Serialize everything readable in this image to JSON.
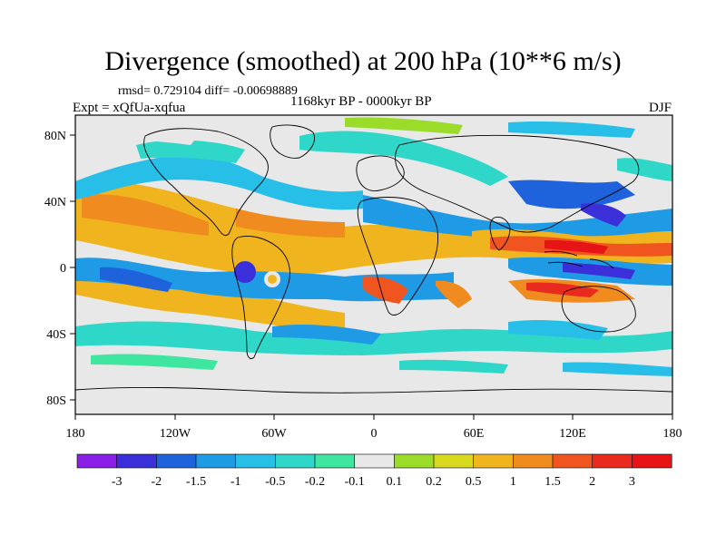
{
  "title": "Divergence (smoothed) at 200 hPa (10**6 m/s)",
  "stats": "rmsd= 0.729104 diff= -0.00698889",
  "period": "1168kyr BP - 0000kyr BP",
  "experiment": "Expt = xQfUa-xqfua",
  "season": "DJF",
  "map": {
    "lon_ticks": [
      "180",
      "120W",
      "60W",
      "0",
      "60E",
      "120E",
      "180"
    ],
    "lat_ticks": [
      "80N",
      "40N",
      "0",
      "40S",
      "80S"
    ]
  },
  "colorbar": {
    "labels": [
      "-3",
      "-2",
      "-1.5",
      "-1",
      "-0.5",
      "-0.2",
      "-0.1",
      "0.1",
      "0.2",
      "0.5",
      "1",
      "1.5",
      "2",
      "3"
    ],
    "colors": [
      "#8a1fe6",
      "#3a2fd8",
      "#1f63dc",
      "#1f9be6",
      "#27bfe8",
      "#2fd7c8",
      "#3fe6a0",
      "#e8e8e8",
      "#9bdc2a",
      "#d8d81f",
      "#f0b41f",
      "#f08c1f",
      "#f0551f",
      "#e82a1f",
      "#e61414"
    ]
  }
}
